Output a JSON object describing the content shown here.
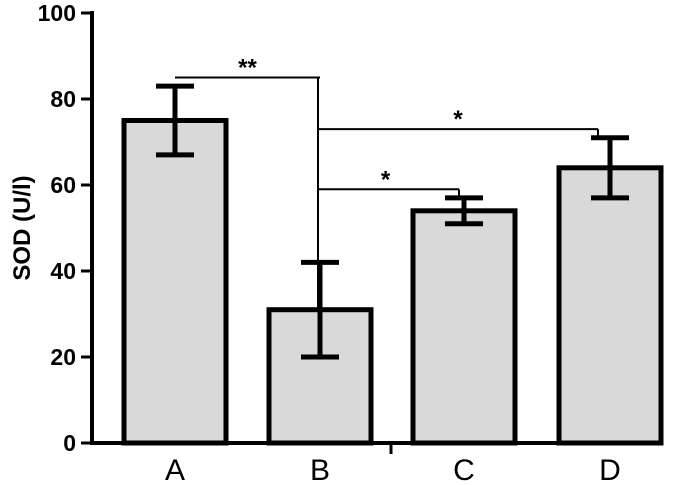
{
  "chart_data": {
    "type": "bar",
    "categories": [
      "A",
      "B",
      "C",
      "D"
    ],
    "values": [
      75,
      31,
      54,
      64
    ],
    "error_upper": [
      83,
      42,
      57,
      71
    ],
    "error_lower": [
      67,
      20,
      51,
      57
    ],
    "ylabel": "SOD (U/l)",
    "xlabel": "",
    "ylim": [
      0,
      100
    ],
    "yticks": [
      0,
      20,
      40,
      60,
      80,
      100
    ],
    "bar_color": "#d9d9d9",
    "edge_color": "#000000",
    "grid": false,
    "significance": [
      {
        "from": "A",
        "to": "B",
        "label": "**",
        "y": 85
      },
      {
        "from": "B",
        "to": "D",
        "label": "*",
        "y": 73
      },
      {
        "from": "B",
        "to": "C",
        "label": "*",
        "y": 59
      }
    ]
  }
}
